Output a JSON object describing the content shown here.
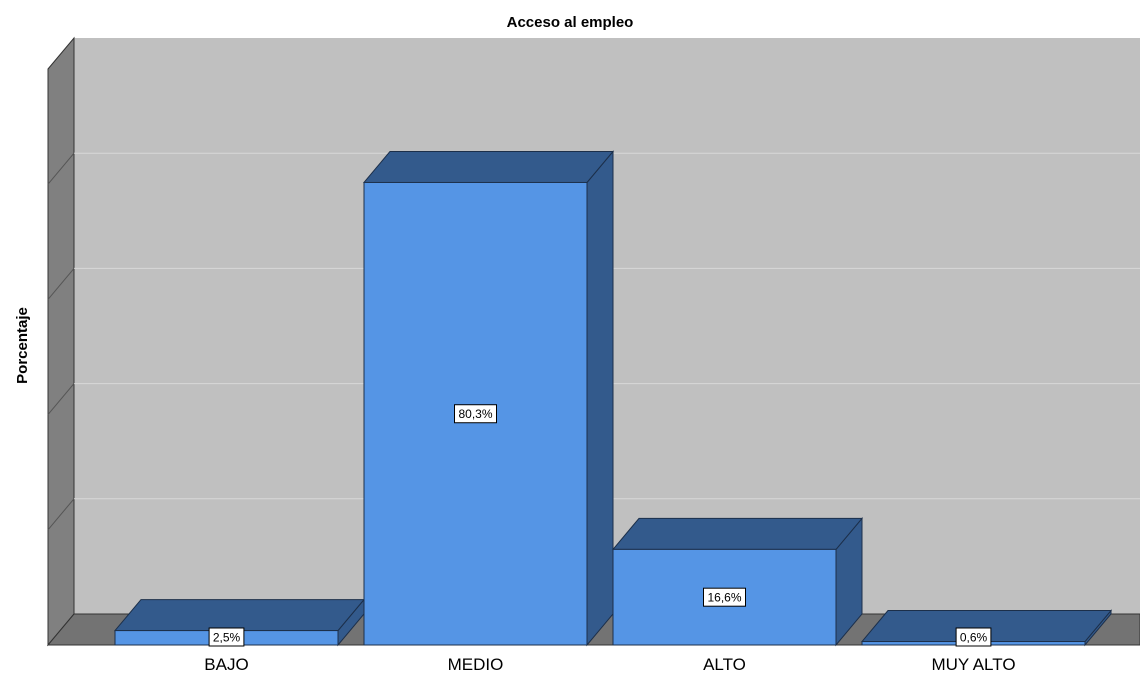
{
  "chart_data": {
    "type": "bar",
    "title": "Acceso al empleo",
    "xlabel": "",
    "ylabel": "Porcentaje",
    "categories": [
      "BAJO",
      "MEDIO",
      "ALTO",
      "MUY ALTO"
    ],
    "values": [
      2.5,
      80.3,
      16.6,
      0.6
    ],
    "data_labels": [
      "2,5%",
      "80,3%",
      "16,6%",
      "0,6%"
    ],
    "ylim": [
      0,
      100
    ],
    "grid": true,
    "style": "3d",
    "colors": {
      "bar_front": "#5595e5",
      "bar_top": "#335a8c",
      "bar_side": "#335a8c",
      "back_wall": "#c0c0c0",
      "side_wall": "#808080",
      "floor": "#737373",
      "gridline": "#d8d8d8"
    }
  }
}
